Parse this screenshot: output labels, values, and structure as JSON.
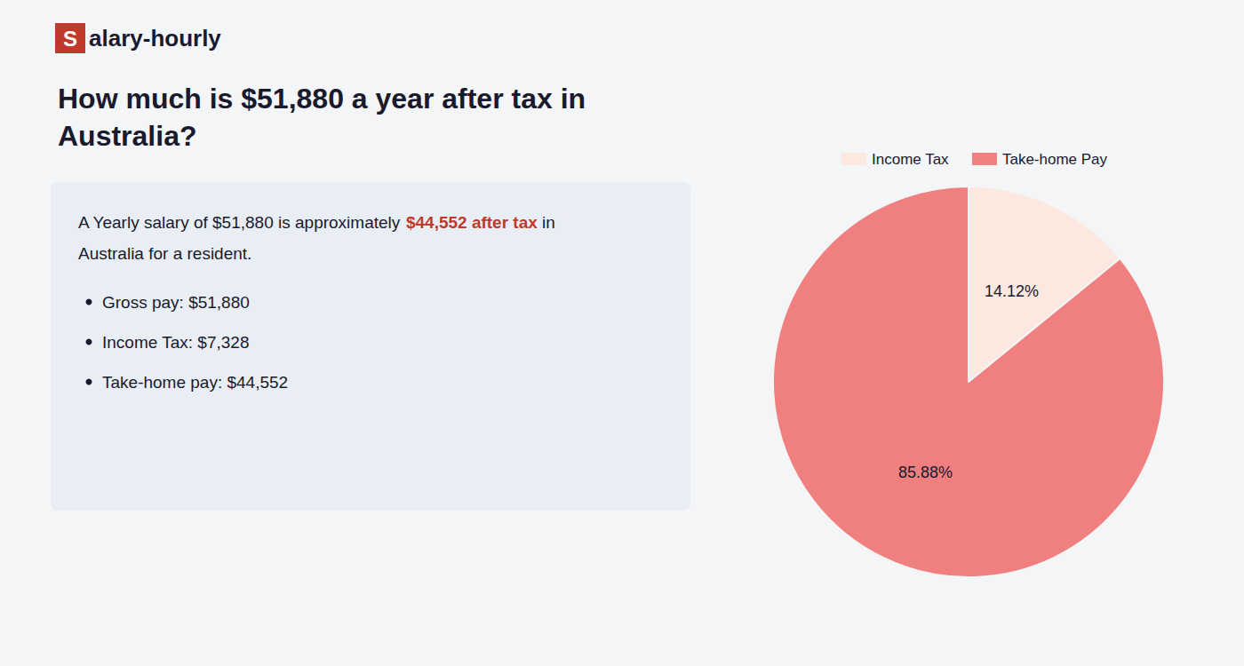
{
  "chart_data": {
    "type": "pie",
    "title": "How much is $51,880 a year after tax in\nAustralia?",
    "annotations": [
      "S",
      "alary-hourly",
      "A Yearly salary of $51,880 is approximately ",
      "$44,552 after tax",
      " in",
      "Australia for a resident.",
      "Gross pay: $51,880",
      "Income Tax: $7,328",
      "Take-home pay: $44,552"
    ],
    "categories": [
      "Income Tax",
      "Take-home Pay"
    ],
    "values": [
      14.12,
      85.88
    ],
    "value_labels": [
      "14.12%",
      "85.88%"
    ],
    "data_labels": true,
    "colors": [
      "#fce8df",
      "#f08080"
    ],
    "legend": "top"
  }
}
